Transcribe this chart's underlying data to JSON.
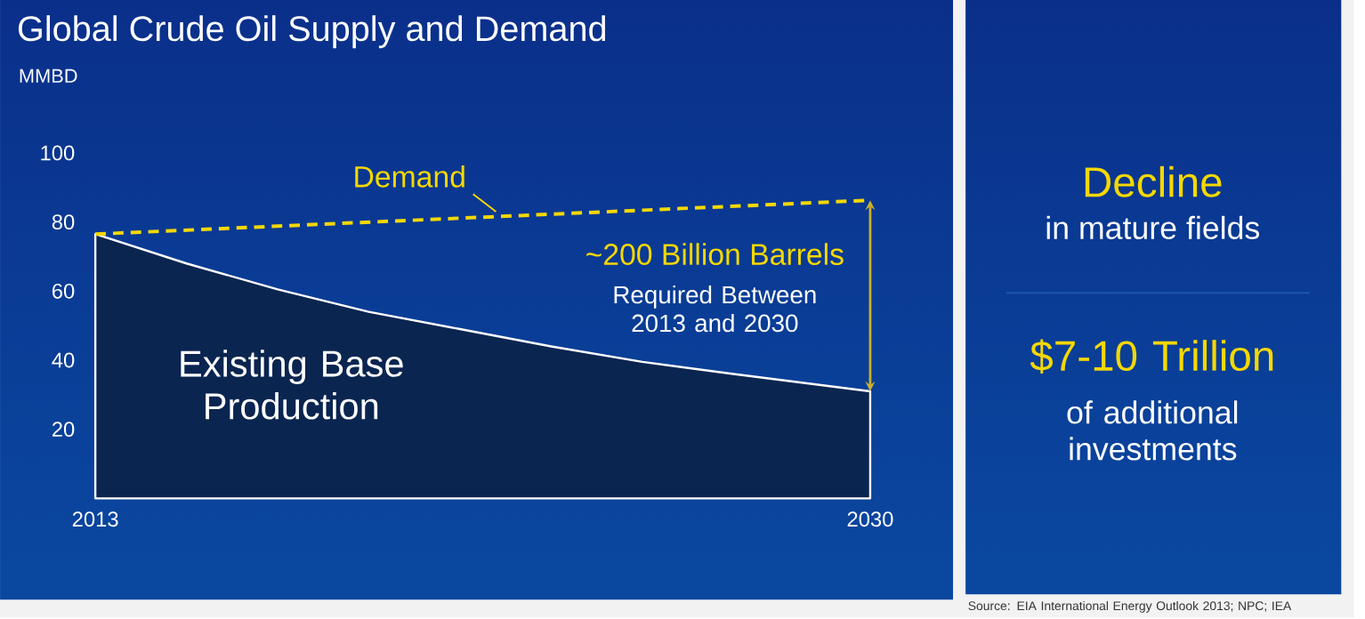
{
  "chart_data": [
    {
      "type": "area",
      "title": "Global Crude Oil Supply and Demand",
      "ylabel": "MMBD",
      "x": [
        2013,
        2015,
        2017,
        2019,
        2021,
        2023,
        2025,
        2027,
        2030
      ],
      "xlim": [
        2013,
        2030
      ],
      "xticks": [
        2013,
        2030
      ],
      "ylim": [
        0,
        100
      ],
      "yticks": [
        20,
        40,
        60,
        80,
        100
      ],
      "series": [
        {
          "name": "Existing Base Production",
          "type": "area",
          "color": "#0a2550",
          "values": [
            76.5,
            68,
            60.5,
            54,
            49,
            44,
            39.5,
            36,
            31
          ]
        },
        {
          "name": "Demand",
          "type": "line",
          "color": "#f5d800",
          "line_style": "dashed",
          "x": [
            2013,
            2030
          ],
          "values": [
            76.5,
            86.3
          ]
        }
      ],
      "annotations": [
        "~200 Billion Barrels",
        "Required Between 2013 and 2030"
      ]
    },
    {
      "type": "other",
      "title": "Decline",
      "subtitle": "in mature fields",
      "annotations": [
        "$7-10 Trillion",
        "of additional investments",
        "Source: EIA International Energy Outlook 2013; NPC; IEA"
      ]
    }
  ]
}
